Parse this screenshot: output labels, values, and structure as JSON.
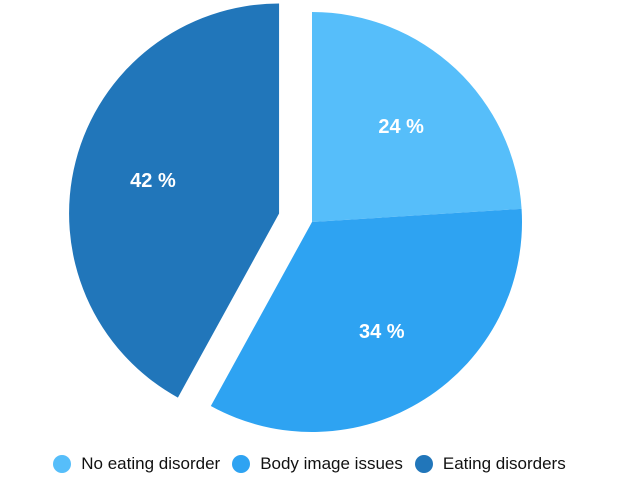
{
  "chart_data": {
    "type": "pie",
    "exploded": "Eating disorders",
    "slices": [
      {
        "label": "No eating disorder",
        "value": 24,
        "display": "24 %",
        "color": "#56BEFA"
      },
      {
        "label": "Body image issues",
        "value": 34,
        "display": "34 %",
        "color": "#2EA3F2"
      },
      {
        "label": "Eating disorders",
        "value": 42,
        "display": "42 %",
        "color": "#2176BA"
      }
    ],
    "legend": {
      "placement": "bottom",
      "items": [
        {
          "label": "No eating disorder",
          "color": "#56BEFA"
        },
        {
          "label": "Body image issues",
          "color": "#2EA3F2"
        },
        {
          "label": "Eating disorders",
          "color": "#2176BA"
        }
      ]
    }
  }
}
